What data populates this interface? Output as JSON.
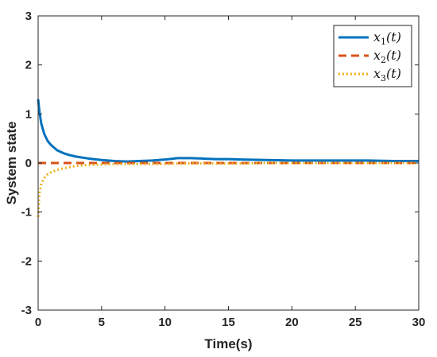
{
  "chart_data": {
    "type": "line",
    "title": "",
    "xlabel": "Time(s)",
    "ylabel": "System state",
    "xlim": [
      0,
      30
    ],
    "ylim": [
      -3,
      3
    ],
    "x_ticks": [
      "0",
      "5",
      "10",
      "15",
      "20",
      "25",
      "30"
    ],
    "y_ticks": [
      "-3",
      "-2",
      "-1",
      "0",
      "1",
      "2",
      "3"
    ],
    "grid": false,
    "legend_position": "top-right",
    "series": [
      {
        "name": "x_1(t)",
        "legend_main": "x",
        "legend_sub": "1",
        "legend_tail": "(t)",
        "color": "#0072BD",
        "style": "solid",
        "x": [
          0,
          0.1,
          0.25,
          0.5,
          0.75,
          1.0,
          1.5,
          2.0,
          2.5,
          3.0,
          4.0,
          5.0,
          6.0,
          7.0,
          8.0,
          9.0,
          10.0,
          11.0,
          12.0,
          13.0,
          14.0,
          15.0,
          16.0,
          18.0,
          20.0,
          22.0,
          24.0,
          26.0,
          28.0,
          30.0
        ],
        "y": [
          1.3,
          1.05,
          0.8,
          0.58,
          0.45,
          0.37,
          0.26,
          0.2,
          0.16,
          0.13,
          0.09,
          0.06,
          0.04,
          0.03,
          0.04,
          0.05,
          0.07,
          0.1,
          0.1,
          0.09,
          0.08,
          0.08,
          0.07,
          0.06,
          0.05,
          0.05,
          0.05,
          0.05,
          0.04,
          0.04
        ]
      },
      {
        "name": "x_2(t)",
        "legend_main": "x",
        "legend_sub": "2",
        "legend_tail": "(t)",
        "color": "#D95319",
        "style": "dashed",
        "x": [
          0,
          5,
          10,
          15,
          20,
          25,
          30
        ],
        "y": [
          0,
          0,
          0,
          0,
          0,
          0,
          0
        ]
      },
      {
        "name": "x_3(t)",
        "legend_main": "x",
        "legend_sub": "3",
        "legend_tail": "(t)",
        "color": "#EDB120",
        "style": "dotted",
        "x": [
          0,
          0.1,
          0.25,
          0.5,
          0.75,
          1.0,
          1.5,
          2.0,
          2.5,
          3.0,
          4.0,
          5.0,
          6.0,
          7.0,
          8.0,
          9.0,
          10.0,
          11.0,
          12.0,
          14.0,
          16.0,
          18.0,
          20.0,
          22.0,
          25.0,
          28.0,
          30.0
        ],
        "y": [
          -1.1,
          -0.62,
          -0.42,
          -0.3,
          -0.23,
          -0.19,
          -0.14,
          -0.11,
          -0.08,
          -0.06,
          -0.04,
          -0.03,
          -0.02,
          -0.02,
          -0.02,
          -0.02,
          -0.02,
          -0.01,
          -0.01,
          -0.01,
          -0.01,
          0.0,
          0.0,
          0.0,
          0.0,
          0.0,
          0.0
        ]
      }
    ]
  }
}
